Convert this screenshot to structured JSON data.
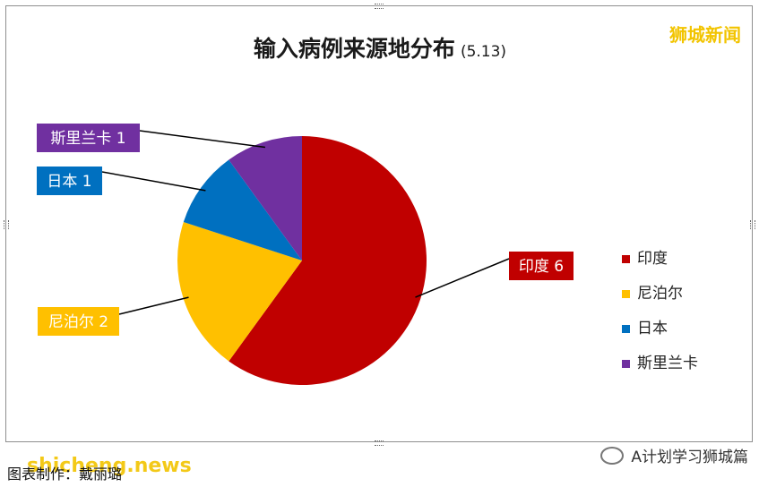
{
  "title": "输入病例来源地分布",
  "subtitle": "(5.13)",
  "brand_tag": "狮城新闻",
  "caption": "图表制作：戴丽璐",
  "caption_watermark": "shicheng.news",
  "account_tag": "A计划学习狮城篇",
  "chart_data": {
    "type": "pie",
    "title": "输入病例来源地分布",
    "subtitle": "(5.13)",
    "slices": [
      {
        "label": "印度",
        "value": 6,
        "color": "#C00000"
      },
      {
        "label": "尼泊尔",
        "value": 2,
        "color": "#FFC000"
      },
      {
        "label": "日本",
        "value": 1,
        "color": "#0070C0"
      },
      {
        "label": "斯里兰卡",
        "value": 1,
        "color": "#7030A0"
      }
    ],
    "data_labels": [
      "印度 6",
      "尼泊尔 2",
      "日本 1",
      "斯里兰卡 1"
    ],
    "legend": [
      "印度",
      "尼泊尔",
      "日本",
      "斯里兰卡"
    ],
    "legend_position": "right"
  }
}
